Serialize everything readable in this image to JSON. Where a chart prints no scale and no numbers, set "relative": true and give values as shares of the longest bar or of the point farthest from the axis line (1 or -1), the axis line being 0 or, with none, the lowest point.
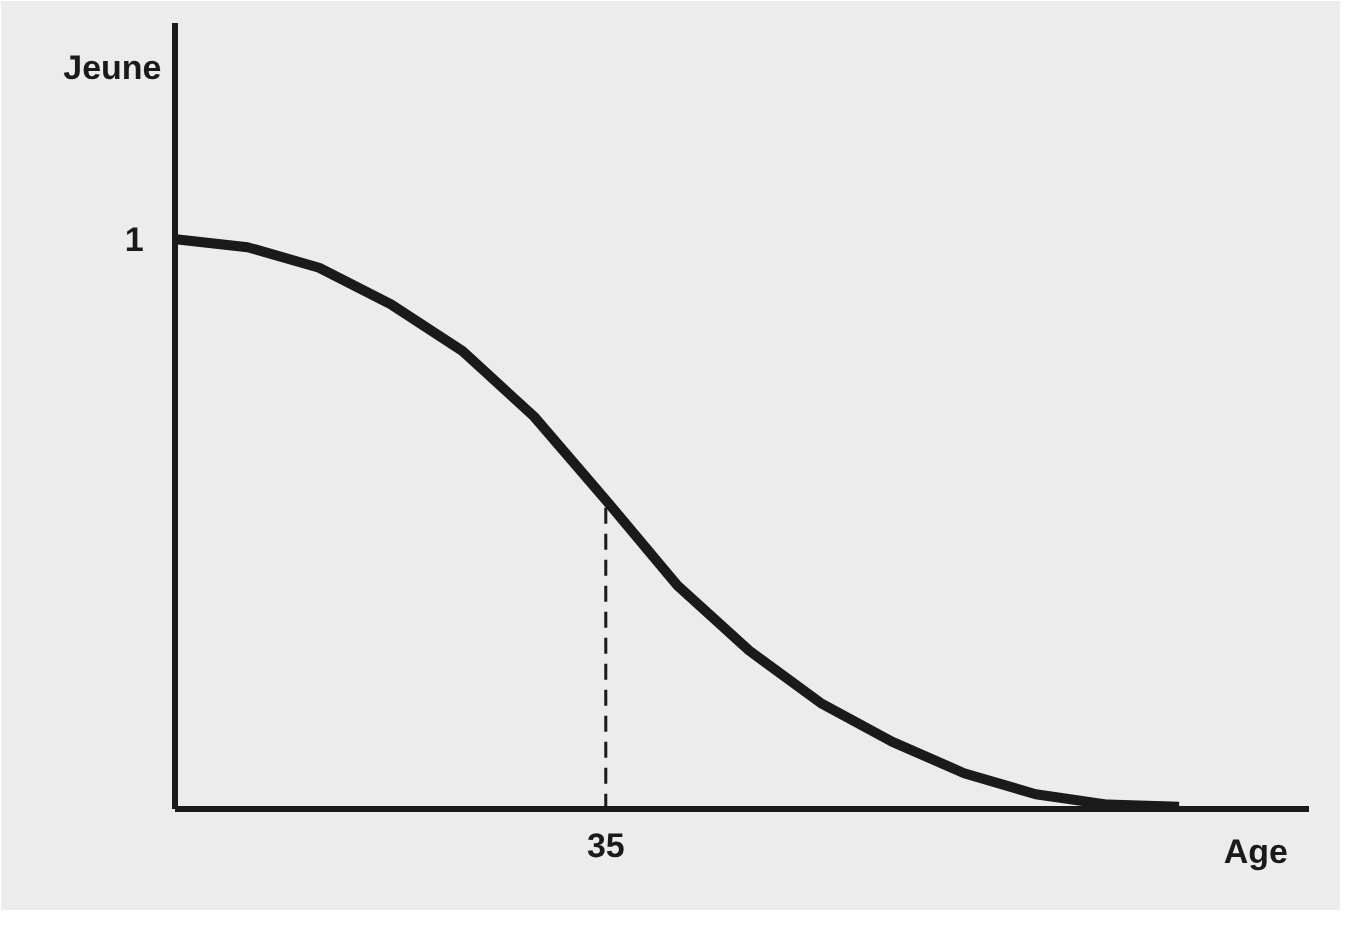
{
  "chart_data": {
    "type": "line",
    "relative": true,
    "xlabel": "Age",
    "ylabel": "Jeune",
    "marker": "none",
    "line_style": "solid",
    "categories": [
      null,
      null,
      null,
      null,
      null,
      null,
      null,
      null,
      null,
      null,
      null,
      null,
      null,
      null,
      null
    ],
    "series": [
      {
        "color": "#1a1a1a",
        "values": [
          1.0,
          0.986,
          0.95,
          0.886,
          0.804,
          0.689,
          0.543,
          0.393,
          0.279,
          0.187,
          0.119,
          0.064,
          0.027,
          0.009,
          0.005
        ]
      }
    ],
    "annotations": [
      "1",
      {
        "text": "35",
        "y": 0.543
      }
    ]
  }
}
